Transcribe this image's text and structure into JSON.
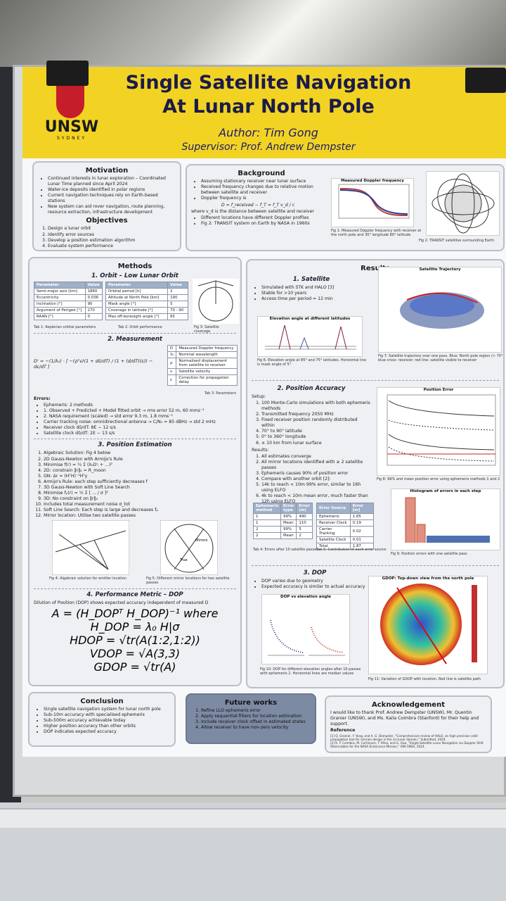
{
  "header": {
    "title": "Single Satellite Navigation At Lunar North Pole",
    "author": "Author: Tim Gong",
    "supervisor": "Supervisor: Prof. Andrew Dempster",
    "logo": "UNSW",
    "logo_sub": "SYDNEY"
  },
  "motivation": {
    "heading": "Motivation",
    "items": [
      "Continued interests in lunar exploration – Coordinated Lunar Time planned since April 2024",
      "Water-ice deposits identified in polar regions",
      "Current navigation techniques rely on Earth-based stations",
      "New system can aid rover navigation, route planning, resource extraction, infrastructure development"
    ]
  },
  "objectives": {
    "heading": "Objectives",
    "items": [
      "Design a lunar orbit",
      "Identify error sources",
      "Develop a position estimation algorithm",
      "Evaluate system performance"
    ]
  },
  "background": {
    "heading": "Background",
    "items": [
      "Assuming stationary receiver near lunar surface",
      "Received frequency changes due to relative motion between satellite and receiver",
      "Doppler frequency is"
    ],
    "formula": "D = f_received − f_T = f_T v_d / c",
    "note": "where v_d is the distance between satellite and receiver",
    "items2": [
      "Different locations have different Doppler profiles",
      "Fig 2: TRANSIT system on Earth by NASA in 1960s"
    ],
    "fig1_title": "Measured Doppler frequency",
    "fig1_caption": "Fig 1: Measured Doppler frequency with receiver at the north pole and 30° longitude 80° latitude",
    "fig2_caption": "Fig 2: TRANSIT satellites surrounding Earth"
  },
  "methods": {
    "heading": "Methods",
    "orbit": {
      "heading": "1. Orbit – Low Lunar Orbit",
      "table1": {
        "header": [
          "Parameter",
          "Value"
        ],
        "rows": [
          [
            "Semi-major axis [km]",
            "1860"
          ],
          [
            "Eccentricity",
            "0.036"
          ],
          [
            "Inclination [°]",
            "90"
          ],
          [
            "Argument of Perigee [°]",
            "270"
          ],
          [
            "RAAN [°]",
            "0"
          ]
        ]
      },
      "table1_caption": "Tab 1: Keplerian orbital parameters",
      "table2": {
        "header": [
          "Parameter",
          "Value"
        ],
        "rows": [
          [
            "Orbital period [h]",
            "2"
          ],
          [
            "Altitude at North Pole [km]",
            "190"
          ],
          [
            "Mask angle [°]",
            "5"
          ],
          [
            "Coverage in latitude [°]",
            "70 - 90"
          ],
          [
            "Max off-boresight angle [°]",
            "65"
          ]
        ]
      },
      "table2_caption": "Tab 2: Orbit performance",
      "fig3_caption": "Fig 3: Satellite coverage"
    },
    "measurement": {
      "heading": "2. Measurement",
      "formula": "D' = −(1/λ₀) · [ −(ρ̇ᵀv)(1 + dδ/dT) / (1 + (d/dT)(ε)) − dε/dT ]",
      "table3": {
        "rows": [
          [
            "D",
            "Measured Doppler frequency"
          ],
          [
            "λ₀",
            "Nominal wavelength"
          ],
          [
            "ρ",
            "Normalised displacement from satellite to receiver"
          ],
          [
            "v",
            "Satellite velocity"
          ],
          [
            "ε",
            "Correction for propagation delay"
          ]
        ]
      },
      "table3_caption": "Tab 3: Parameters",
      "errors_heading": "Errors:",
      "errors": [
        "Ephemeris: 2 methods",
        "1. Observed + Predicted + Model fitted orbit → rms error 52 m, 60 mms⁻¹",
        "2. NASA requirement (scaled) → std error 9.3 m, 1.8 mms⁻¹",
        "Carrier tracking noise: omnidirectional antenna → C/N₀ = 85 dBHz → std 2 mHz",
        "Receiver clock dδ/dT: 8E − 12 s/s",
        "Satellite clock dδ/dT: 2E − 13 s/s"
      ]
    },
    "estimation": {
      "heading": "3. Position Estimation",
      "items": [
        "Algebraic Solution: Fig 4 below",
        "2D Gauss-Newton with Armijo's Rule",
        "Minimise f(r) = ½ Σ (λ₀D'ᵢ + ...)²",
        "2D: constrain ‖r‖₂ = R_moon",
        "GN: Δr = (HᵀH)⁻¹Hᵀy",
        "Armijo's Rule: each step sufficiently decreases f",
        "3D Gauss-Newton with Soft Line Search",
        "Minimise fₚ(r) = ½ Σ [ ... / σ ]²",
        "3D: No constraint on ‖r‖₂",
        "Includes total measurement noise σ_tot",
        "Soft Line Search: Each step is large and decreases fₚ",
        "Mirror location: Utilise two satellite passes"
      ],
      "fig4_caption": "Fig 4: Algebraic solution for emitter location",
      "fig5_caption": "Fig 5: Different mirror locations for two satellite passes",
      "fig5_labels": [
        "Mirrors",
        "True"
      ]
    },
    "dop": {
      "heading": "4. Performance Metric – DOP",
      "text": "Dilution of Position (DOP) shows expected accuracy independent of measured D",
      "lines": [
        "A = (H_DOPᵀ H_DOP)⁻¹ where H_DOP = λ₀ H|σ",
        "HDOP = √tr(A(1:2,1:2))",
        "VDOP = √A(3,3)",
        "GDOP = √tr(A)"
      ]
    }
  },
  "results": {
    "heading": "Results",
    "satellite": {
      "heading": "1. Satellite",
      "items": [
        "Simulated with STK and HALO [3]",
        "Stable for >10 years",
        "Access time per period ≈ 12 min"
      ],
      "fig6_title": "Elevation angle at different latitudes",
      "fig6_caption": "Fig 6: Elevation angle at 85° and 75° latitudes. Horizontal line is mask angle of 5°",
      "fig7_title": "Satellite Trajectory",
      "fig7_caption": "Fig 7: Satellite trajectory over one pass. Blue: North pole region (> 70°) blue cross: receiver; red line: satellite visible to receiver"
    },
    "accuracy": {
      "heading": "2. Position Accuracy",
      "setup_heading": "Setup:",
      "setup": [
        "100 Monte-Carlo simulations with both ephemeris methods",
        "Transmitted frequency 2050 MHz",
        "Fixed receiver position randomly distributed within",
        "70° to 90° latitude",
        "0° to 360° longitude",
        "± 10 km from lunar surface"
      ],
      "results_heading": "Results:",
      "results": [
        "All estimates converge",
        "All mirror locations identified with ≥ 2 satellite passes",
        "Ephemeris causes 90% of position error",
        "Compare with another orbit [2]:",
        "14k to reach < 10m 99% error, similar to 16h using ELFO",
        "4k to reach < 10m mean error, much faster than 12h using ELFO"
      ],
      "table4": {
        "header": [
          "Ephemeris method",
          "Error type",
          "Error (m)"
        ],
        "rows": [
          [
            "1",
            "99%",
            "490"
          ],
          [
            "1",
            "Mean",
            "110"
          ],
          [
            "2",
            "99%",
            "5"
          ],
          [
            "2",
            "Mean",
            "2"
          ]
        ]
      },
      "table4_caption": "Tab 4: Errors after 10 satellite passes",
      "table5": {
        "header": [
          "Error Source",
          "Error [m]"
        ],
        "rows": [
          [
            "Ephemeris",
            "1.65"
          ],
          [
            "Receiver Clock",
            "0.19"
          ],
          [
            "Carrier Tracking",
            "0.02"
          ],
          [
            "Satellite Clock",
            "0.01"
          ],
          [
            "Total",
            "1.87"
          ]
        ]
      },
      "table5_caption": "Tab 5: Contribution of each error source",
      "fig8_title": "Position Error",
      "fig8_caption": "Fig 8: 99% and mean position error using ephemeris methods 1 and 2",
      "fig9_title": "Histogram of errors in each step",
      "fig9_caption": "Fig 9: Position errors with one satellite pass"
    },
    "dop": {
      "heading": "3. DOP",
      "items": [
        "DOP varies due to geometry",
        "Expected accuracy is similar to actual accuracy"
      ],
      "fig10_title": "DOP vs elevation angle",
      "fig10_caption": "Fig 10: DOP for different elevation angles after 10 passes with ephemeris 2. Horizontal lines are median values",
      "fig11_title": "GDOP: Top-down view from the north pole",
      "fig11_caption": "Fig 11: Variation of GDOP with location. Red line is satellite path"
    }
  },
  "conclusion": {
    "heading": "Conclusion",
    "items": [
      "Single satellite navigation system for lunar north pole",
      "Sub-10m accuracy with specialised ephemeris",
      "Sub-500m accuracy achievable today",
      "Higher position accuracy than other orbits",
      "DOP indicates expected accuracy"
    ]
  },
  "future": {
    "heading": "Future works",
    "items": [
      "Refine LLO ephemeris error",
      "Apply sequential filters for location estimation",
      "Include receiver clock offset in estimated states",
      "Allow receiver to have non-zero velocity"
    ]
  },
  "acknowledgement": {
    "heading": "Acknowledgement",
    "text": "I would like to thank Prof. Andrew Dempster (UNSW), Mr. Quentin Granier (UNSW), and Ms. Kaila Coimbra (Stanford) for their help and support.",
    "ref_heading": "Reference",
    "refs": [
      "[1] Q. Granier, Y. Yang, and A. G. Dempster, \"Comprehensive review of HALO, an high precision orbit propagation tool for mission design in the cis-lunar domain,\" Submitted, 2024.",
      "[2] K. Y. Coimbra, M. Cortinovis, T. Mina, and G. Gao, \"Single-Satellite Lunar Navigation via Doppler Shift Observables for the NASA Endurance Mission,\" ION GNSS, 2024."
    ]
  }
}
